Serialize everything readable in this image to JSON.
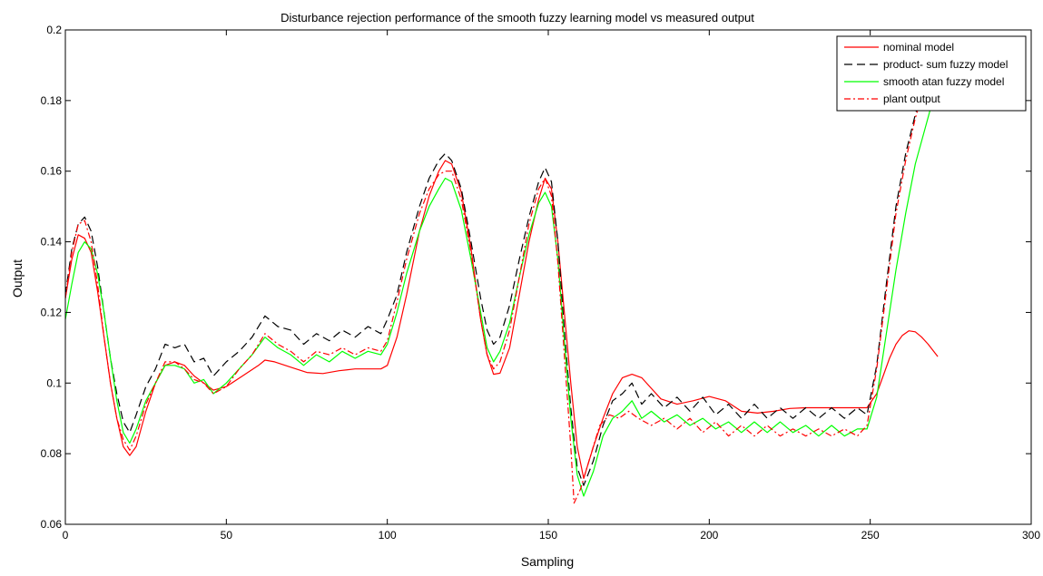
{
  "chart_data": {
    "type": "line",
    "title": "Disturbance rejection performance of the smooth fuzzy learning model vs measured output",
    "xlabel": "Sampling",
    "ylabel": "Output",
    "xlim": [
      0,
      300
    ],
    "ylim": [
      0.06,
      0.2
    ],
    "xticks": [
      0,
      50,
      100,
      150,
      200,
      250,
      300
    ],
    "yticks": [
      0.06,
      0.08,
      0.1,
      0.12,
      0.14,
      0.16,
      0.18,
      0.2
    ],
    "xtick_labels": [
      "0",
      "50",
      "100",
      "150",
      "200",
      "250",
      "300"
    ],
    "ytick_labels": [
      "0.06",
      "0.08",
      "0.1",
      "0.12",
      "0.14",
      "0.16",
      "0.18",
      "0.2"
    ],
    "grid": false,
    "legend_position": "top-right",
    "series": [
      {
        "name": "nominal model",
        "color": "#ff0000",
        "dash": "solid",
        "x": [
          0,
          2,
          4,
          6,
          8,
          10,
          12,
          14,
          16,
          18,
          20,
          22,
          25,
          28,
          31,
          34,
          37,
          40,
          43,
          46,
          50,
          55,
          60,
          62,
          65,
          70,
          75,
          80,
          85,
          90,
          95,
          98,
          100,
          103,
          106,
          110,
          113,
          116,
          118,
          120,
          123,
          126,
          129,
          131,
          133,
          135,
          138,
          141,
          144,
          147,
          149,
          151,
          153,
          155,
          157,
          159,
          161,
          164,
          167,
          170,
          173,
          176,
          179,
          182,
          185,
          190,
          195,
          200,
          205,
          210,
          215,
          220,
          225,
          230,
          235,
          240,
          245,
          249,
          252,
          254,
          256,
          258,
          260,
          262,
          264,
          266,
          268,
          271
        ],
        "y": [
          0.124,
          0.135,
          0.142,
          0.141,
          0.137,
          0.126,
          0.113,
          0.1,
          0.09,
          0.082,
          0.0795,
          0.082,
          0.092,
          0.1,
          0.105,
          0.106,
          0.105,
          0.102,
          0.1,
          0.098,
          0.099,
          0.102,
          0.105,
          0.1065,
          0.106,
          0.1045,
          0.103,
          0.1027,
          0.1035,
          0.104,
          0.104,
          0.104,
          0.105,
          0.113,
          0.125,
          0.143,
          0.153,
          0.16,
          0.163,
          0.162,
          0.154,
          0.138,
          0.118,
          0.108,
          0.1025,
          0.1028,
          0.11,
          0.125,
          0.14,
          0.152,
          0.158,
          0.155,
          0.14,
          0.12,
          0.1,
          0.082,
          0.073,
          0.082,
          0.09,
          0.097,
          0.1015,
          0.1025,
          0.1015,
          0.0985,
          0.0955,
          0.094,
          0.095,
          0.0962,
          0.095,
          0.092,
          0.0915,
          0.092,
          0.0928,
          0.093,
          0.093,
          0.093,
          0.093,
          0.093,
          0.097,
          0.102,
          0.107,
          0.111,
          0.1135,
          0.1148,
          0.1145,
          0.113,
          0.111,
          0.1075
        ]
      },
      {
        "name": "product- sum fuzzy model",
        "color": "#000000",
        "dash": "dashed",
        "x": [
          0,
          2,
          4,
          6,
          8,
          10,
          12,
          14,
          16,
          18,
          20,
          22,
          25,
          28,
          31,
          34,
          37,
          40,
          43,
          46,
          50,
          54,
          58,
          62,
          66,
          70,
          74,
          78,
          82,
          86,
          90,
          94,
          98,
          100,
          103,
          106,
          110,
          113,
          116,
          118,
          120,
          123,
          126,
          129,
          131,
          133,
          135,
          138,
          141,
          144,
          147,
          149,
          151,
          153,
          155,
          157,
          159,
          161,
          164,
          167,
          170,
          173,
          176,
          179,
          182,
          186,
          190,
          194,
          198,
          202,
          206,
          210,
          214,
          218,
          222,
          226,
          230,
          234,
          238,
          242,
          246,
          249,
          252,
          255,
          258,
          261,
          264,
          268,
          270
        ],
        "y": [
          0.125,
          0.138,
          0.145,
          0.147,
          0.143,
          0.133,
          0.12,
          0.107,
          0.097,
          0.089,
          0.086,
          0.091,
          0.099,
          0.104,
          0.111,
          0.11,
          0.111,
          0.106,
          0.107,
          0.102,
          0.106,
          0.109,
          0.113,
          0.119,
          0.116,
          0.115,
          0.111,
          0.114,
          0.112,
          0.115,
          0.113,
          0.116,
          0.114,
          0.118,
          0.125,
          0.137,
          0.15,
          0.158,
          0.163,
          0.165,
          0.163,
          0.155,
          0.14,
          0.124,
          0.115,
          0.111,
          0.113,
          0.122,
          0.135,
          0.147,
          0.157,
          0.161,
          0.157,
          0.14,
          0.115,
          0.093,
          0.076,
          0.071,
          0.078,
          0.088,
          0.095,
          0.097,
          0.1,
          0.094,
          0.097,
          0.093,
          0.096,
          0.092,
          0.096,
          0.091,
          0.094,
          0.09,
          0.094,
          0.09,
          0.093,
          0.09,
          0.093,
          0.09,
          0.093,
          0.09,
          0.093,
          0.091,
          0.105,
          0.128,
          0.15,
          0.165,
          0.176,
          0.188,
          0.195
        ]
      },
      {
        "name": "smooth atan fuzzy model",
        "color": "#00ff00",
        "dash": "solid",
        "x": [
          0,
          2,
          4,
          6,
          8,
          10,
          12,
          14,
          16,
          18,
          20,
          22,
          25,
          28,
          31,
          34,
          37,
          40,
          43,
          46,
          50,
          54,
          58,
          62,
          66,
          70,
          74,
          78,
          82,
          86,
          90,
          94,
          98,
          100,
          103,
          106,
          110,
          113,
          116,
          118,
          120,
          123,
          126,
          129,
          131,
          133,
          135,
          138,
          141,
          144,
          147,
          149,
          151,
          153,
          155,
          157,
          159,
          161,
          164,
          167,
          170,
          173,
          176,
          179,
          182,
          186,
          190,
          194,
          198,
          202,
          206,
          210,
          214,
          218,
          222,
          226,
          230,
          234,
          238,
          242,
          246,
          249,
          252,
          255,
          258,
          261,
          264,
          267,
          270
        ],
        "y": [
          0.118,
          0.128,
          0.137,
          0.14,
          0.138,
          0.131,
          0.12,
          0.107,
          0.095,
          0.086,
          0.083,
          0.087,
          0.095,
          0.1,
          0.105,
          0.105,
          0.104,
          0.1,
          0.101,
          0.097,
          0.1,
          0.104,
          0.108,
          0.113,
          0.11,
          0.108,
          0.105,
          0.108,
          0.106,
          0.109,
          0.107,
          0.109,
          0.108,
          0.111,
          0.12,
          0.131,
          0.143,
          0.15,
          0.155,
          0.158,
          0.157,
          0.149,
          0.135,
          0.12,
          0.11,
          0.106,
          0.109,
          0.117,
          0.13,
          0.142,
          0.151,
          0.154,
          0.15,
          0.135,
          0.112,
          0.09,
          0.074,
          0.068,
          0.075,
          0.085,
          0.09,
          0.092,
          0.095,
          0.09,
          0.092,
          0.089,
          0.091,
          0.088,
          0.09,
          0.087,
          0.089,
          0.086,
          0.089,
          0.086,
          0.089,
          0.086,
          0.088,
          0.085,
          0.088,
          0.085,
          0.087,
          0.087,
          0.096,
          0.114,
          0.132,
          0.148,
          0.162,
          0.172,
          0.182
        ]
      },
      {
        "name": "plant output",
        "color": "#ff0000",
        "dash": "dashdot",
        "x": [
          0,
          2,
          4,
          6,
          8,
          10,
          12,
          14,
          16,
          18,
          20,
          22,
          25,
          28,
          31,
          34,
          37,
          40,
          43,
          46,
          50,
          54,
          58,
          62,
          66,
          70,
          74,
          78,
          82,
          86,
          90,
          94,
          98,
          100,
          103,
          106,
          110,
          113,
          116,
          118,
          120,
          123,
          126,
          129,
          131,
          133,
          135,
          138,
          141,
          144,
          147,
          149,
          151,
          153,
          155,
          157,
          158,
          160,
          163,
          166,
          169,
          172,
          175,
          178,
          182,
          186,
          190,
          194,
          198,
          202,
          206,
          210,
          214,
          218,
          222,
          226,
          230,
          234,
          238,
          242,
          246,
          249,
          252,
          255,
          258,
          261,
          264,
          268,
          270
        ],
        "y": [
          0.124,
          0.137,
          0.145,
          0.146,
          0.14,
          0.128,
          0.113,
          0.1,
          0.09,
          0.084,
          0.081,
          0.085,
          0.094,
          0.1,
          0.106,
          0.106,
          0.104,
          0.101,
          0.1,
          0.097,
          0.099,
          0.104,
          0.108,
          0.114,
          0.111,
          0.109,
          0.106,
          0.109,
          0.108,
          0.11,
          0.108,
          0.11,
          0.109,
          0.112,
          0.123,
          0.135,
          0.148,
          0.155,
          0.159,
          0.16,
          0.16,
          0.152,
          0.137,
          0.118,
          0.108,
          0.104,
          0.106,
          0.115,
          0.13,
          0.145,
          0.155,
          0.158,
          0.153,
          0.134,
          0.108,
          0.082,
          0.066,
          0.07,
          0.079,
          0.088,
          0.091,
          0.09,
          0.092,
          0.09,
          0.088,
          0.09,
          0.087,
          0.09,
          0.086,
          0.089,
          0.085,
          0.088,
          0.085,
          0.088,
          0.085,
          0.087,
          0.085,
          0.087,
          0.085,
          0.087,
          0.085,
          0.088,
          0.104,
          0.126,
          0.148,
          0.163,
          0.175,
          0.187,
          0.194
        ]
      }
    ]
  }
}
